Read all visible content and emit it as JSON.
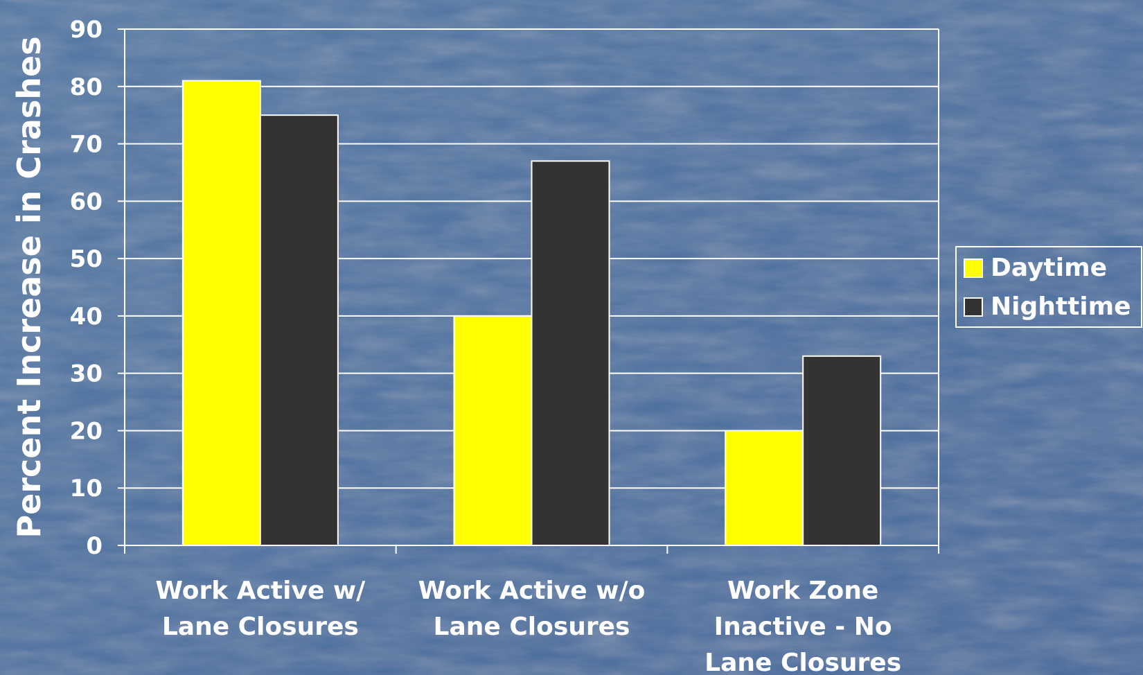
{
  "chart_data": {
    "type": "bar",
    "title": "",
    "xlabel": "",
    "ylabel": "Percent Increase in Crashes",
    "ylim": [
      0,
      90
    ],
    "yticks": [
      0,
      10,
      20,
      30,
      40,
      50,
      60,
      70,
      80,
      90
    ],
    "grid": true,
    "legend_position": "right",
    "categories": [
      [
        "Work Active w/",
        "Lane Closures"
      ],
      [
        "Work Active w/o",
        "Lane Closures"
      ],
      [
        "Work Zone",
        "Inactive - No",
        "Lane Closures"
      ]
    ],
    "series": [
      {
        "name": "Daytime",
        "color": "#ffff00",
        "values": [
          81,
          40,
          20
        ]
      },
      {
        "name": "Nighttime",
        "color": "#333333",
        "values": [
          75,
          67,
          33
        ]
      }
    ]
  },
  "colors": {
    "background": "#4a6e98",
    "grid": "#ffffff",
    "text": "#ffffff"
  }
}
